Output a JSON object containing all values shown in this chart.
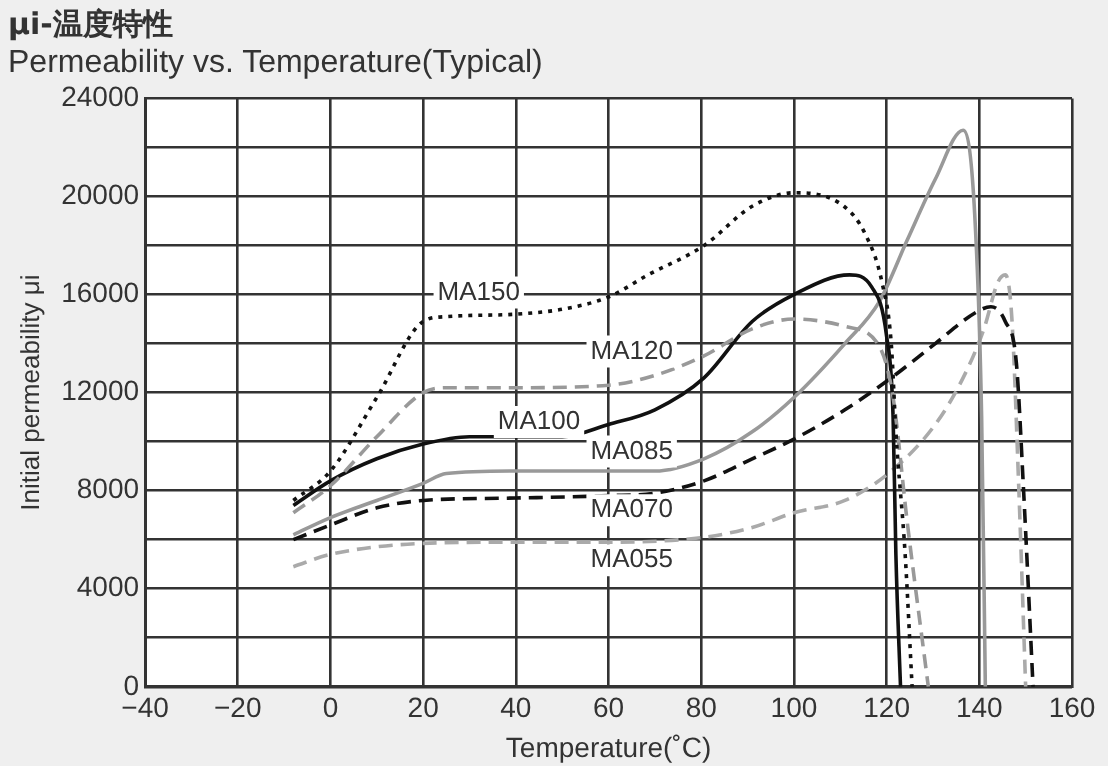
{
  "chart_data": {
    "type": "line",
    "title": "μi-温度特性",
    "subtitle": "Permeability vs. Temperature(Typical)",
    "xlabel": "Temperature(˚C)",
    "ylabel": "Initial permeability μi",
    "xlim": [
      -40,
      160
    ],
    "xticks": [
      -40,
      -20,
      0,
      20,
      40,
      60,
      80,
      100,
      120,
      140,
      160
    ],
    "ylim": [
      0,
      24000
    ],
    "yticks": [
      0,
      {
        "value": 2000,
        "label": null
      },
      4000,
      {
        "value": 6000,
        "label": null
      },
      8000,
      {
        "value": 10000,
        "label": null
      },
      12000,
      {
        "value": 14000,
        "label": null
      },
      16000,
      {
        "value": 18000,
        "label": null
      },
      20000,
      {
        "value": 22000,
        "label": null
      },
      24000
    ],
    "grid": true,
    "legend": false,
    "marker": "none",
    "series": [
      {
        "name": "MA150",
        "color": "#111111",
        "line_style": "dotted",
        "x": [
          -8,
          0,
          10,
          20,
          25,
          40,
          50,
          60,
          68.5,
          80.6,
          91,
          100,
          110.8,
          115.3,
          119,
          121,
          122,
          124,
          125.5
        ],
        "values": [
          7600,
          8800,
          11800,
          14900,
          15100,
          15200,
          15400,
          15900,
          16800,
          18000,
          19600,
          20150,
          19600,
          18500,
          16500,
          14000,
          10400,
          5400,
          0
        ]
      },
      {
        "name": "MA120",
        "color": "#999999",
        "line_style": "dashed",
        "x": [
          -8,
          0,
          10,
          20,
          25,
          40,
          60,
          70,
          80.6,
          91,
          100,
          111,
          118.4,
          121.4,
          124.4,
          129
        ],
        "values": [
          7100,
          8200,
          10200,
          12000,
          12200,
          12200,
          12300,
          12700,
          13500,
          14600,
          15000,
          14700,
          13900,
          11800,
          6800,
          0
        ]
      },
      {
        "name": "MA100",
        "color": "#111111",
        "line_style": "solid",
        "x": [
          -8,
          0,
          10,
          20,
          30,
          50,
          60,
          70,
          80.6,
          91,
          100,
          112,
          116.8,
          120,
          121.4,
          122,
          123
        ],
        "values": [
          7400,
          8400,
          9300,
          9900,
          10200,
          10200,
          10700,
          11300,
          12600,
          14900,
          16000,
          16800,
          16300,
          14300,
          11000,
          5400,
          0
        ]
      },
      {
        "name": "MA085",
        "color": "#999999",
        "line_style": "solid",
        "x": [
          -8,
          0,
          10,
          20,
          25,
          40,
          60,
          70,
          80.6,
          91,
          100,
          111,
          118.4,
          124.4,
          130.5,
          136.5,
          139,
          140.5,
          141.3
        ],
        "values": [
          6200,
          6900,
          7600,
          8300,
          8700,
          8800,
          8800,
          8800,
          9300,
          10400,
          11800,
          14000,
          15700,
          18200,
          20700,
          22700,
          19300,
          11000,
          0
        ]
      },
      {
        "name": "MA070",
        "color": "#111111",
        "line_style": "dashed",
        "x": [
          -8,
          0,
          10,
          20,
          40,
          60,
          70,
          80.6,
          91,
          100,
          111,
          121,
          130.5,
          139.5,
          142.5,
          145.6,
          148,
          149.5,
          151.6
        ],
        "values": [
          6000,
          6600,
          7300,
          7600,
          7700,
          7800,
          7900,
          8400,
          9300,
          10100,
          11300,
          12600,
          14000,
          15300,
          15500,
          14900,
          13200,
          8200,
          0
        ]
      },
      {
        "name": "MA055",
        "color": "#aaaaaa",
        "line_style": "dashed",
        "x": [
          -8,
          0,
          20,
          40,
          60,
          80.6,
          91,
          100,
          111,
          121,
          130.5,
          136.5,
          141,
          144,
          145.6,
          147,
          148.5,
          150
        ],
        "values": [
          4900,
          5400,
          5850,
          5900,
          5900,
          6100,
          6500,
          7100,
          7600,
          8800,
          10700,
          12600,
          14600,
          16500,
          16800,
          15100,
          8200,
          0
        ]
      }
    ]
  }
}
